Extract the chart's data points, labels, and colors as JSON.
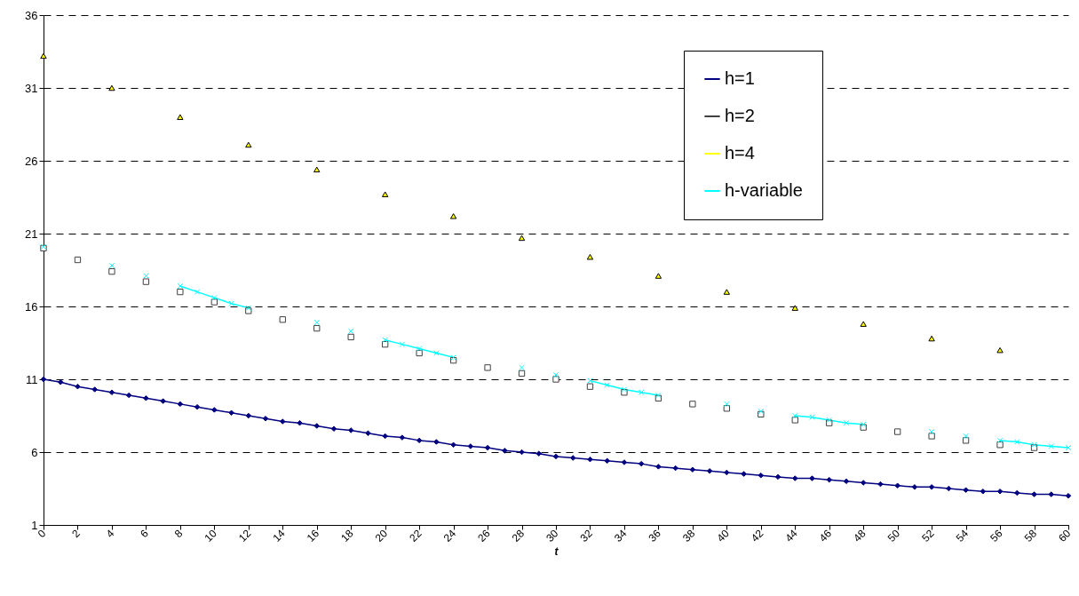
{
  "chart_data": {
    "type": "line",
    "xlabel": "t",
    "x": [
      0,
      1,
      2,
      3,
      4,
      5,
      6,
      7,
      8,
      9,
      10,
      11,
      12,
      13,
      14,
      15,
      16,
      17,
      18,
      19,
      20,
      21,
      22,
      23,
      24,
      25,
      26,
      27,
      28,
      29,
      30,
      31,
      32,
      33,
      34,
      35,
      36,
      37,
      38,
      39,
      40,
      41,
      42,
      43,
      44,
      45,
      46,
      47,
      48,
      49,
      50,
      51,
      52,
      53,
      54,
      55,
      56,
      57,
      58,
      59,
      60
    ],
    "xlim": [
      0,
      60
    ],
    "xticks": [
      0,
      2,
      4,
      6,
      8,
      10,
      12,
      14,
      16,
      18,
      20,
      22,
      24,
      26,
      28,
      30,
      32,
      34,
      36,
      38,
      40,
      42,
      44,
      46,
      48,
      50,
      52,
      54,
      56,
      58,
      60
    ],
    "ylim": [
      1,
      36
    ],
    "yticks": [
      1,
      6,
      11,
      16,
      21,
      26,
      31,
      36
    ],
    "grid": "y",
    "legend": "top right",
    "series": [
      {
        "name": "h=1",
        "color": "#000080",
        "marker": "diamond",
        "values": [
          11.0,
          10.8,
          10.5,
          10.3,
          10.1,
          9.9,
          9.7,
          9.5,
          9.3,
          9.1,
          8.9,
          8.7,
          8.5,
          8.3,
          8.1,
          8.0,
          7.8,
          7.6,
          7.5,
          7.3,
          7.1,
          7.0,
          6.8,
          6.7,
          6.5,
          6.4,
          6.3,
          6.1,
          6.0,
          5.9,
          5.7,
          5.6,
          5.5,
          5.4,
          5.3,
          5.2,
          5.0,
          4.9,
          4.8,
          4.7,
          4.6,
          4.5,
          4.4,
          4.3,
          4.2,
          4.2,
          4.1,
          4.0,
          3.9,
          3.8,
          3.7,
          3.6,
          3.6,
          3.5,
          3.4,
          3.3,
          3.3,
          3.2,
          3.1,
          3.1,
          3.0
        ]
      },
      {
        "name": "h=2",
        "color": "#404040",
        "marker": "square",
        "values": [
          20.0,
          null,
          19.2,
          null,
          18.4,
          null,
          17.7,
          null,
          17.0,
          null,
          16.3,
          null,
          15.7,
          null,
          15.1,
          null,
          14.5,
          null,
          13.9,
          null,
          13.4,
          null,
          12.8,
          null,
          12.3,
          null,
          11.8,
          null,
          11.4,
          null,
          11.0,
          null,
          10.5,
          null,
          10.1,
          null,
          9.7,
          null,
          9.3,
          null,
          9.0,
          null,
          8.6,
          null,
          8.2,
          null,
          8.0,
          null,
          7.7,
          null,
          7.4,
          null,
          7.1,
          null,
          6.8,
          null,
          6.5,
          null,
          6.3,
          null,
          null
        ]
      },
      {
        "name": "h=4",
        "color": "#ffff00",
        "marker": "triangle",
        "values": [
          33.2,
          null,
          null,
          null,
          31.0,
          null,
          null,
          null,
          29.0,
          null,
          null,
          null,
          27.1,
          null,
          null,
          null,
          25.4,
          null,
          null,
          null,
          23.7,
          null,
          null,
          null,
          22.2,
          null,
          null,
          null,
          20.7,
          null,
          null,
          null,
          19.4,
          null,
          null,
          null,
          18.1,
          null,
          null,
          null,
          17.0,
          null,
          null,
          null,
          15.9,
          null,
          null,
          null,
          14.8,
          null,
          null,
          null,
          13.8,
          null,
          null,
          null,
          13.0,
          null,
          null,
          null,
          null
        ]
      },
      {
        "name": "h-variable",
        "color": "#00ffff",
        "marker": "cross",
        "values": [
          20.1,
          null,
          null,
          null,
          18.8,
          null,
          18.1,
          null,
          17.4,
          17.0,
          16.6,
          16.2,
          15.9,
          null,
          null,
          null,
          14.9,
          null,
          14.3,
          null,
          13.7,
          13.4,
          13.1,
          12.8,
          12.5,
          null,
          null,
          null,
          11.8,
          null,
          11.3,
          null,
          10.9,
          10.6,
          10.3,
          10.1,
          9.9,
          null,
          null,
          null,
          9.3,
          null,
          8.8,
          null,
          8.5,
          8.4,
          8.2,
          8.0,
          7.9,
          null,
          null,
          null,
          7.4,
          null,
          7.1,
          null,
          6.8,
          6.7,
          6.5,
          6.4,
          6.3
        ]
      }
    ]
  }
}
